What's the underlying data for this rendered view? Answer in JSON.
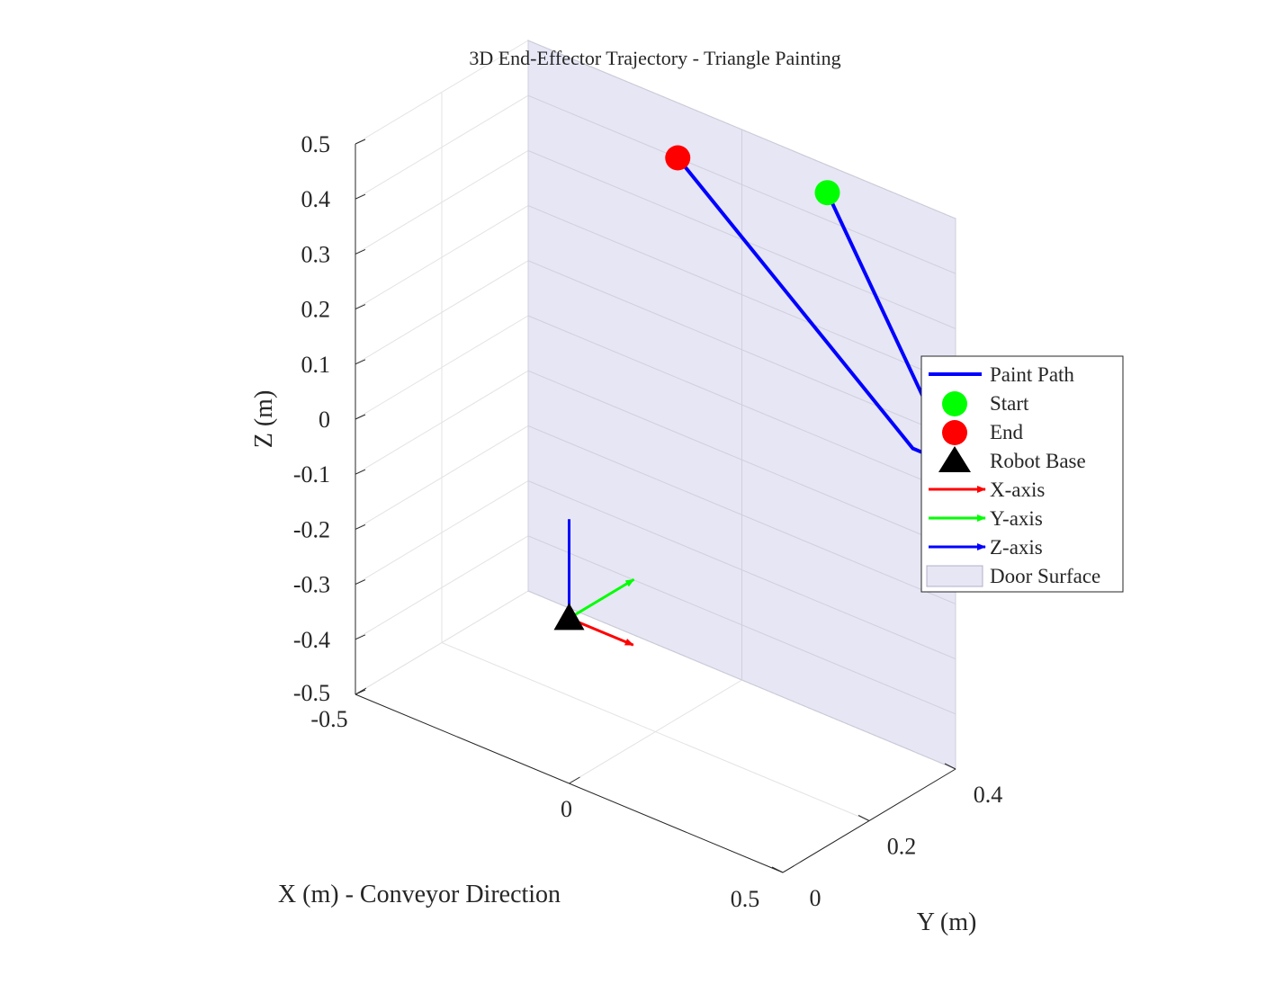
{
  "chart_data": {
    "type": "3d-line",
    "title": "3D End-Effector Trajectory - Triangle Painting",
    "xlabel": "X (m) - Conveyor Direction",
    "ylabel": "Y (m)",
    "zlabel": "Z (m)",
    "xlim": [
      -0.5,
      0.5
    ],
    "ylim": [
      0,
      0.4
    ],
    "zlim": [
      -0.5,
      0.5
    ],
    "x_ticks": [
      "-0.5",
      "0",
      "0.5"
    ],
    "y_ticks": [
      "0",
      "0.2",
      "0.4"
    ],
    "z_ticks": [
      "0.5",
      "0.4",
      "0.3",
      "0.2",
      "0.1",
      "0",
      "-0.1",
      "-0.2",
      "-0.3",
      "-0.4",
      "-0.5"
    ],
    "grid": true,
    "legend_position": "east",
    "legend": [
      {
        "label": "Paint Path",
        "kind": "line",
        "color": "#0000ff"
      },
      {
        "label": "Start",
        "kind": "circle",
        "color": "#00ff00"
      },
      {
        "label": "End",
        "kind": "circle",
        "color": "#ff0000"
      },
      {
        "label": "Robot Base",
        "kind": "triangle",
        "color": "#000000"
      },
      {
        "label": "X-axis",
        "kind": "arrow",
        "color": "#ff0000"
      },
      {
        "label": "Y-axis",
        "kind": "arrow",
        "color": "#00ff00"
      },
      {
        "label": "Z-axis",
        "kind": "arrow",
        "color": "#0000ff"
      },
      {
        "label": "Door Surface",
        "kind": "patch",
        "color": "#e6e6f5"
      }
    ],
    "door_surface": {
      "y": 0.4,
      "x_range": [
        -0.5,
        0.5
      ],
      "z_range": [
        -0.5,
        0.5
      ],
      "color": "#e6e6f5"
    },
    "paint_path": {
      "color": "#0000ff",
      "points": [
        {
          "x": 0.2,
          "y": 0.4,
          "z": 0.45
        },
        {
          "x": 0.5,
          "y": 0.4,
          "z": 0.05
        },
        {
          "x": 0.4,
          "y": 0.4,
          "z": 0.05
        },
        {
          "x": -0.15,
          "y": 0.4,
          "z": 0.4
        }
      ]
    },
    "start_point": {
      "x": 0.2,
      "y": 0.4,
      "z": 0.45,
      "color": "#00ff00"
    },
    "end_point": {
      "x": -0.15,
      "y": 0.4,
      "z": 0.4,
      "color": "#ff0000"
    },
    "robot_base": {
      "x": 0,
      "y": 0,
      "z": -0.2,
      "color": "#000000"
    },
    "base_axes": [
      {
        "name": "X-axis",
        "color": "#ff0000",
        "dx": 0.15,
        "dy": 0,
        "dz": 0
      },
      {
        "name": "Y-axis",
        "color": "#00ff00",
        "dx": 0,
        "dy": 0.15,
        "dz": 0
      },
      {
        "name": "Z-axis",
        "color": "#0000ff",
        "dx": 0,
        "dy": 0,
        "dz": 0.18
      }
    ]
  }
}
